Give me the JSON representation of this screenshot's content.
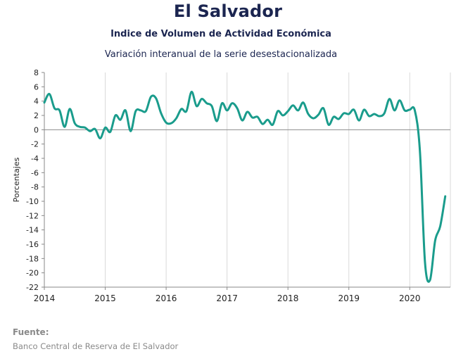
{
  "chart_data": {
    "type": "line",
    "title": "El Salvador",
    "subtitle": "Indice de Volumen de  Actividad Económica",
    "subtitle2": "Variación interanual de la serie desestacionalizada",
    "ylabel": "Porcentajes",
    "xlabel": "",
    "ylim": [
      -22,
      8
    ],
    "yticks": [
      8,
      6,
      4,
      2,
      0,
      -2,
      -4,
      -6,
      -8,
      -10,
      -12,
      -14,
      -16,
      -18,
      -20,
      -22
    ],
    "xlim": [
      2014,
      2020.667
    ],
    "xticks": [
      "2014",
      "2015",
      "2016",
      "2017",
      "2018",
      "2019",
      "2020"
    ],
    "grid": true,
    "series": [
      {
        "name": "",
        "color": "#1a9c8c",
        "points": [
          [
            2014.0,
            3.8
          ],
          [
            2014.083,
            5.0
          ],
          [
            2014.167,
            3.0
          ],
          [
            2014.25,
            2.7
          ],
          [
            2014.333,
            0.4
          ],
          [
            2014.417,
            2.9
          ],
          [
            2014.5,
            0.9
          ],
          [
            2014.583,
            0.4
          ],
          [
            2014.667,
            0.3
          ],
          [
            2014.75,
            -0.2
          ],
          [
            2014.833,
            0.1
          ],
          [
            2014.917,
            -1.2
          ],
          [
            2015.0,
            0.3
          ],
          [
            2015.083,
            -0.3
          ],
          [
            2015.167,
            2.0
          ],
          [
            2015.25,
            1.4
          ],
          [
            2015.333,
            2.7
          ],
          [
            2015.417,
            -0.2
          ],
          [
            2015.5,
            2.6
          ],
          [
            2015.583,
            2.7
          ],
          [
            2015.667,
            2.6
          ],
          [
            2015.75,
            4.6
          ],
          [
            2015.833,
            4.4
          ],
          [
            2015.917,
            2.3
          ],
          [
            2016.0,
            1.0
          ],
          [
            2016.083,
            0.9
          ],
          [
            2016.167,
            1.6
          ],
          [
            2016.25,
            2.9
          ],
          [
            2016.333,
            2.6
          ],
          [
            2016.417,
            5.3
          ],
          [
            2016.5,
            3.3
          ],
          [
            2016.583,
            4.3
          ],
          [
            2016.667,
            3.7
          ],
          [
            2016.75,
            3.3
          ],
          [
            2016.833,
            1.2
          ],
          [
            2016.917,
            3.7
          ],
          [
            2017.0,
            2.7
          ],
          [
            2017.083,
            3.7
          ],
          [
            2017.167,
            3.0
          ],
          [
            2017.25,
            1.3
          ],
          [
            2017.333,
            2.5
          ],
          [
            2017.417,
            1.7
          ],
          [
            2017.5,
            1.8
          ],
          [
            2017.583,
            0.8
          ],
          [
            2017.667,
            1.4
          ],
          [
            2017.75,
            0.7
          ],
          [
            2017.833,
            2.6
          ],
          [
            2017.917,
            2.0
          ],
          [
            2018.0,
            2.6
          ],
          [
            2018.083,
            3.4
          ],
          [
            2018.167,
            2.7
          ],
          [
            2018.25,
            3.8
          ],
          [
            2018.333,
            2.2
          ],
          [
            2018.417,
            1.6
          ],
          [
            2018.5,
            2.1
          ],
          [
            2018.583,
            3.0
          ],
          [
            2018.667,
            0.7
          ],
          [
            2018.75,
            1.8
          ],
          [
            2018.833,
            1.5
          ],
          [
            2018.917,
            2.3
          ],
          [
            2019.0,
            2.2
          ],
          [
            2019.083,
            2.8
          ],
          [
            2019.167,
            1.3
          ],
          [
            2019.25,
            2.8
          ],
          [
            2019.333,
            1.9
          ],
          [
            2019.417,
            2.2
          ],
          [
            2019.5,
            1.9
          ],
          [
            2019.583,
            2.3
          ],
          [
            2019.667,
            4.3
          ],
          [
            2019.75,
            2.7
          ],
          [
            2019.833,
            4.1
          ],
          [
            2019.917,
            2.7
          ],
          [
            2020.0,
            2.8
          ],
          [
            2020.083,
            2.7
          ],
          [
            2020.167,
            -3.0
          ],
          [
            2020.25,
            -18.5
          ],
          [
            2020.333,
            -21.0
          ],
          [
            2020.417,
            -15.5
          ],
          [
            2020.5,
            -13.5
          ],
          [
            2020.583,
            -9.3
          ]
        ]
      }
    ]
  },
  "source": {
    "label": "Fuente:",
    "text": "Banco Central de Reserva de El Salvador"
  },
  "colors": {
    "line": "#1a9c8c",
    "title": "#1b2550",
    "grid": "#d9d9d9",
    "zero_line": "#8c8c8c",
    "source": "#8a8a8a"
  }
}
